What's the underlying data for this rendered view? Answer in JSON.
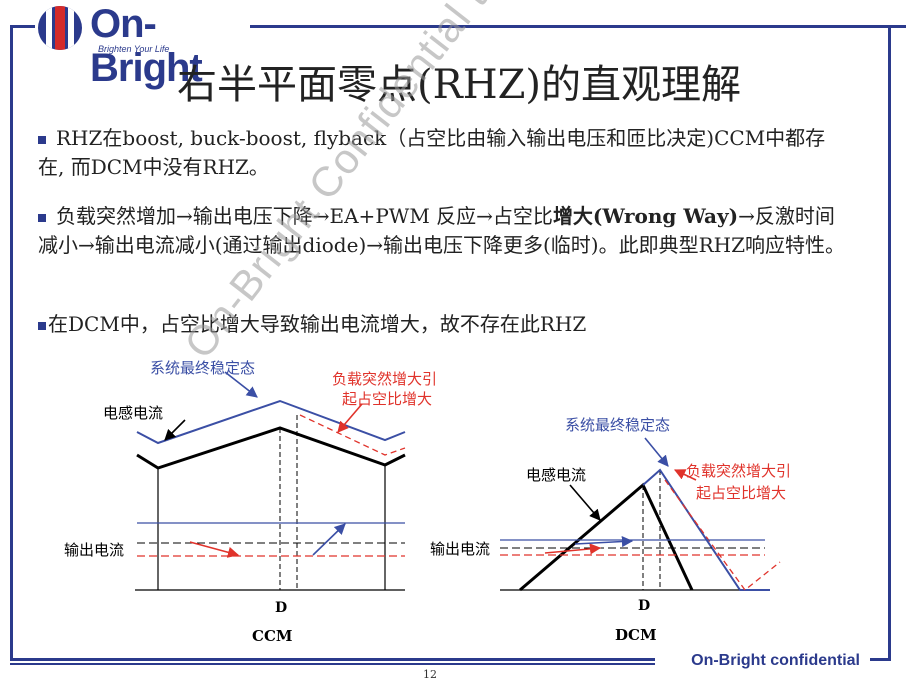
{
  "logo": {
    "name": "On-Bright",
    "tagline": "Brighten Your Life"
  },
  "title": "右半平面零点(RHZ)的直观理解",
  "bullets": [
    {
      "text": "RHZ在boost, buck-boost, flyback（占空比由输入输出电压和匝比决定)CCM中都存在, 而DCM中没有RHZ。"
    },
    {
      "pre": "负载突然增加→输出电压下降→EA+PWM 反应→占空比",
      "highlight": "增大(Wrong Way)",
      "post": "→反激时间减小→输出电流减小(通过输出diode)→输出电压下降更多(临时)。此即典型RHZ响应特性。"
    },
    {
      "text": "在DCM中，占空比增大导致输出电流增大，故不存在此RHZ"
    }
  ],
  "ccm": {
    "steady_label": "系统最终稳定态",
    "load_label_1": "负载突然增大引",
    "load_label_2": "起占空比增大",
    "inductor_label": "电感电流",
    "output_label": "输出电流",
    "d_label": "D",
    "caption": "CCM"
  },
  "dcm": {
    "steady_label": "系统最终稳定态",
    "load_label_1": "负载突然增大引",
    "load_label_2": "起占空比增大",
    "inductor_label": "电感电流",
    "output_label": "输出电流",
    "d_label": "D",
    "caption": "DCM"
  },
  "watermark": "On-Bright Confidential to Tempo",
  "footer": "On-Bright confidential",
  "page_number": "12",
  "colors": {
    "brand": "#2b3a8c",
    "red": "#e0332b",
    "blue": "#3b4fa5"
  }
}
